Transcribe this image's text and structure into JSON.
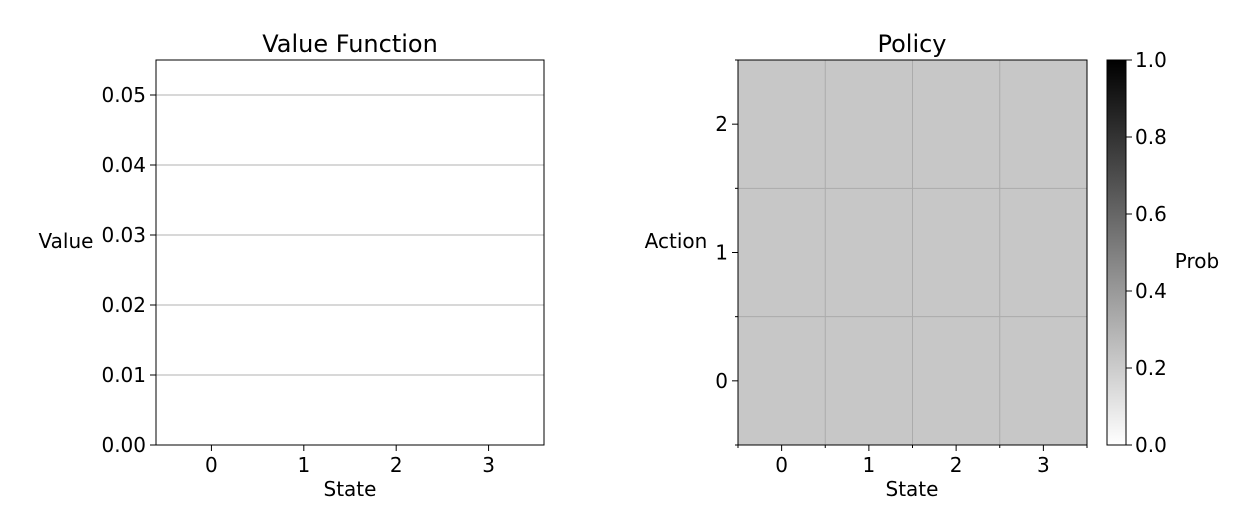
{
  "chart_data": [
    {
      "type": "bar",
      "title": "Value Function",
      "xlabel": "State",
      "ylabel": "Value",
      "categories": [
        "0",
        "1",
        "2",
        "3"
      ],
      "values": [
        0,
        0,
        0,
        0
      ],
      "ylim": [
        0,
        0.055
      ],
      "yticks": [
        "0.00",
        "0.01",
        "0.02",
        "0.03",
        "0.04",
        "0.05"
      ],
      "ytick_values": [
        0,
        0.01,
        0.02,
        0.03,
        0.04,
        0.05
      ],
      "grid": "y"
    },
    {
      "type": "heatmap",
      "title": "Policy",
      "xlabel": "State",
      "ylabel": "Action",
      "x_categories": [
        "0",
        "1",
        "2",
        "3"
      ],
      "y_categories": [
        "0",
        "1",
        "2"
      ],
      "values": [
        [
          0.333,
          0.333,
          0.333,
          0.333
        ],
        [
          0.333,
          0.333,
          0.333,
          0.333
        ],
        [
          0.333,
          0.333,
          0.333,
          0.333
        ]
      ],
      "grid": "on",
      "colorbar": {
        "label": "Prob",
        "range": [
          0,
          1
        ],
        "ticks": [
          "0.0",
          "0.2",
          "0.4",
          "0.6",
          "0.8",
          "1.0"
        ],
        "tick_values": [
          0,
          0.2,
          0.4,
          0.6,
          0.8,
          1.0
        ],
        "colormap": "Greys"
      }
    }
  ]
}
